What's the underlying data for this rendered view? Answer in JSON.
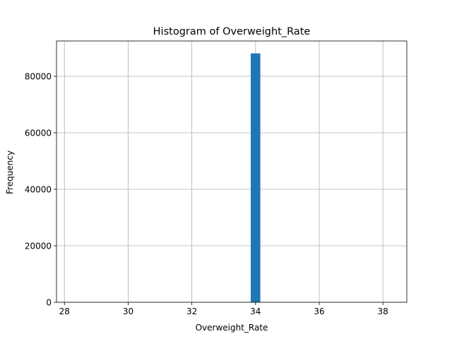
{
  "chart_data": {
    "type": "bar",
    "title": "Histogram of Overweight_Rate",
    "xlabel": "Overweight_Rate",
    "ylabel": "Frequency",
    "xlim": [
      27.75,
      38.75
    ],
    "ylim": [
      0,
      92500
    ],
    "x_ticks": [
      28,
      30,
      32,
      34,
      36,
      38
    ],
    "y_ticks": [
      0,
      20000,
      40000,
      60000,
      80000
    ],
    "grid": true,
    "bars": [
      {
        "x0": 33.85,
        "x1": 34.15,
        "value": 88100
      }
    ],
    "colors": {
      "bar": "#1f77b4",
      "grid": "#b0b0b0",
      "axes": "#000000"
    }
  }
}
